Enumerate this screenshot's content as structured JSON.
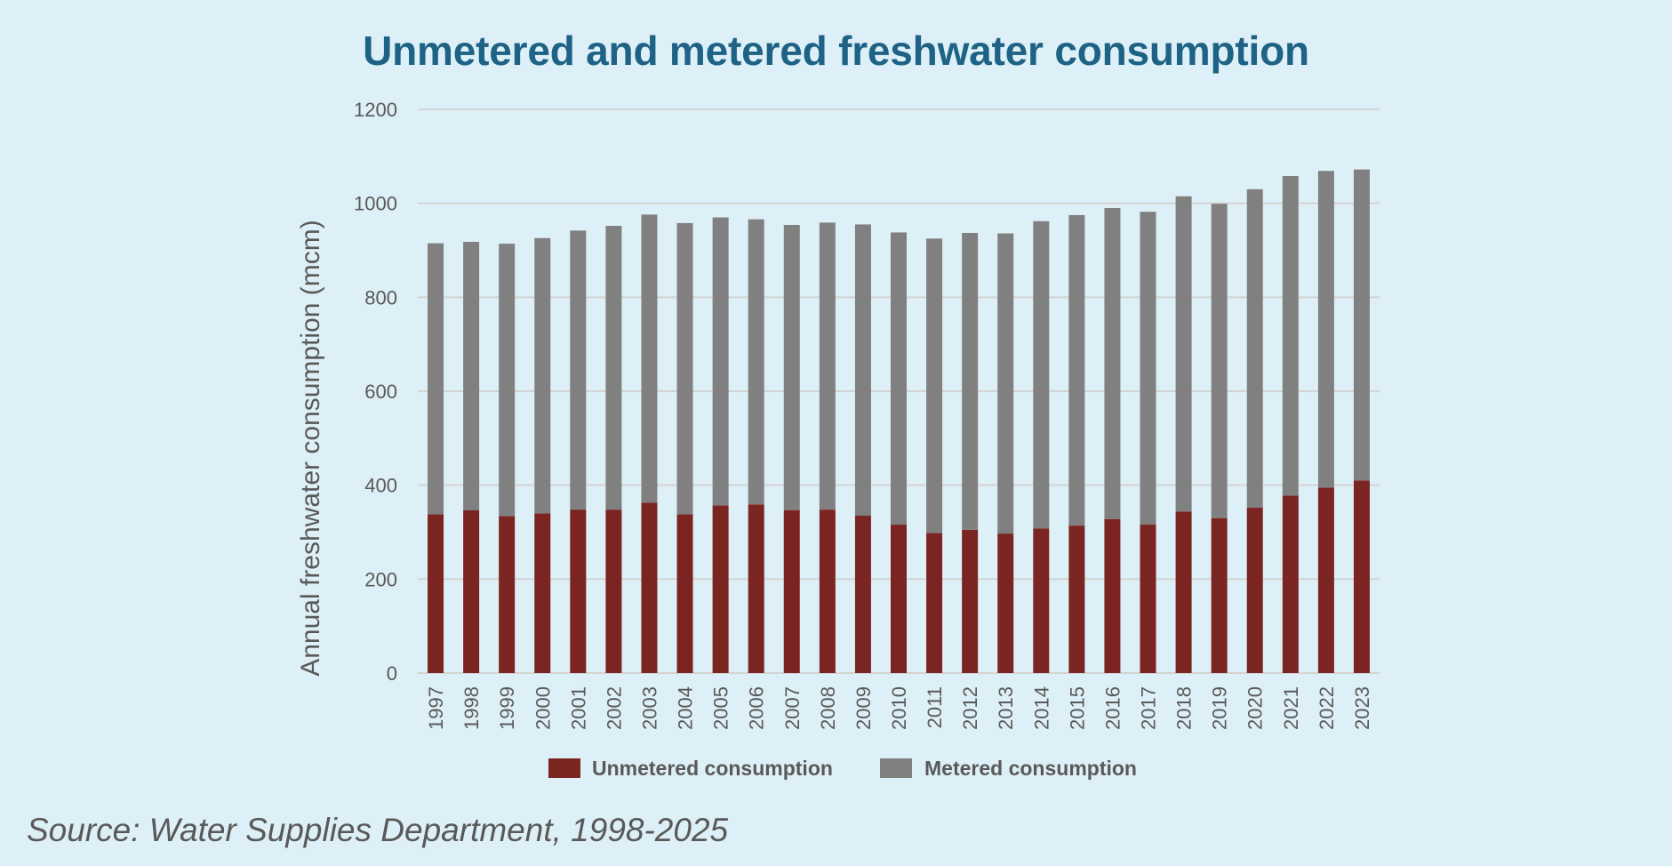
{
  "chart_data": {
    "type": "bar",
    "stacked": true,
    "title": "Unmetered and metered freshwater consumption",
    "xlabel": "",
    "ylabel": "Annual freshwater consumption (mcm)",
    "ylim": [
      0,
      1200
    ],
    "yticks": [
      0,
      200,
      400,
      600,
      800,
      1000,
      1200
    ],
    "grid": true,
    "legend_position": "bottom",
    "categories": [
      "1997",
      "1998",
      "1999",
      "2000",
      "2001",
      "2002",
      "2003",
      "2004",
      "2005",
      "2006",
      "2007",
      "2008",
      "2009",
      "2010",
      "2011",
      "2012",
      "2013",
      "2014",
      "2015",
      "2016",
      "2017",
      "2018",
      "2019",
      "2020",
      "2021",
      "2022",
      "2023"
    ],
    "series": [
      {
        "name": "Unmetered consumption",
        "color": "#7b2522",
        "values": [
          338,
          347,
          334,
          340,
          348,
          348,
          363,
          338,
          357,
          359,
          347,
          348,
          335,
          316,
          298,
          305,
          297,
          308,
          314,
          328,
          316,
          344,
          330,
          352,
          378,
          395,
          410
        ]
      },
      {
        "name": "Metered consumption",
        "color": "#808080",
        "values": [
          577,
          571,
          580,
          586,
          594,
          604,
          613,
          620,
          613,
          607,
          607,
          611,
          620,
          622,
          627,
          632,
          639,
          654,
          661,
          662,
          666,
          671,
          669,
          678,
          680,
          674,
          662
        ]
      }
    ]
  },
  "source": "Source: Water Supplies Department, 1998-2025"
}
